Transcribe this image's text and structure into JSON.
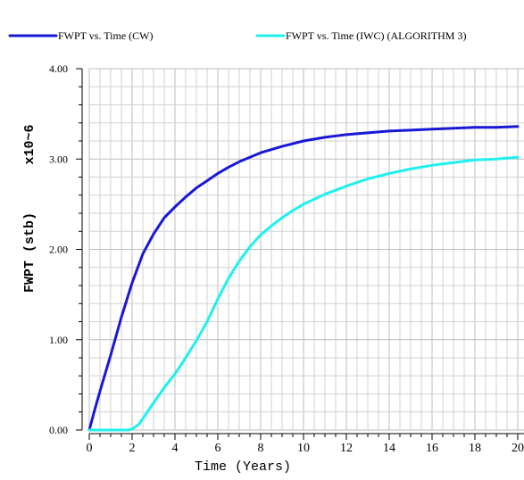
{
  "chart_data": {
    "type": "line",
    "title": "",
    "xlabel": "Time (Years)",
    "ylabel": "FWPT (stb)",
    "ylabel_multiplier": "x10~6",
    "xlim": [
      0,
      20
    ],
    "ylim": [
      0,
      4
    ],
    "x_ticks": [
      0,
      2,
      4,
      6,
      8,
      10,
      12,
      14,
      16,
      18,
      20
    ],
    "x_tick_labels": [
      "0",
      "2",
      "4",
      "6",
      "8",
      "10",
      "12",
      "14",
      "16",
      "18",
      "20"
    ],
    "y_ticks": [
      0,
      1,
      2,
      3,
      4
    ],
    "y_tick_labels": [
      "0.00",
      "1.00",
      "2.00",
      "3.00",
      "4.00"
    ],
    "grid": true,
    "legend_position": "top",
    "series": [
      {
        "name": "FWPT vs. Time (CW)",
        "color": "#1818d6",
        "x": [
          0,
          0.25,
          0.5,
          0.75,
          1,
          1.5,
          2,
          2.5,
          3,
          3.5,
          4,
          4.5,
          5,
          5.5,
          6,
          6.5,
          7,
          7.5,
          8,
          9,
          10,
          11,
          12,
          13,
          14,
          15,
          16,
          17,
          18,
          19,
          20
        ],
        "values": [
          0,
          0.22,
          0.43,
          0.63,
          0.83,
          1.25,
          1.63,
          1.95,
          2.17,
          2.35,
          2.47,
          2.58,
          2.68,
          2.76,
          2.84,
          2.91,
          2.97,
          3.02,
          3.07,
          3.14,
          3.2,
          3.24,
          3.27,
          3.29,
          3.31,
          3.32,
          3.33,
          3.34,
          3.35,
          3.35,
          3.36
        ]
      },
      {
        "name": "FWPT vs. Time (IWC) (ALGORITHM 3)",
        "color": "#1ef0f0",
        "x": [
          0,
          1,
          1.8,
          2.0,
          2.3,
          2.6,
          3,
          3.5,
          4,
          4.5,
          5,
          5.5,
          6,
          6.5,
          7,
          7.5,
          8,
          8.5,
          9,
          9.5,
          10,
          11,
          12,
          13,
          14,
          15,
          16,
          17,
          18,
          19,
          20
        ],
        "values": [
          0,
          0,
          0,
          0.01,
          0.06,
          0.16,
          0.3,
          0.47,
          0.62,
          0.8,
          0.99,
          1.2,
          1.45,
          1.68,
          1.87,
          2.03,
          2.16,
          2.26,
          2.35,
          2.43,
          2.5,
          2.61,
          2.7,
          2.78,
          2.84,
          2.89,
          2.93,
          2.96,
          2.99,
          3.0,
          3.02
        ]
      }
    ]
  }
}
